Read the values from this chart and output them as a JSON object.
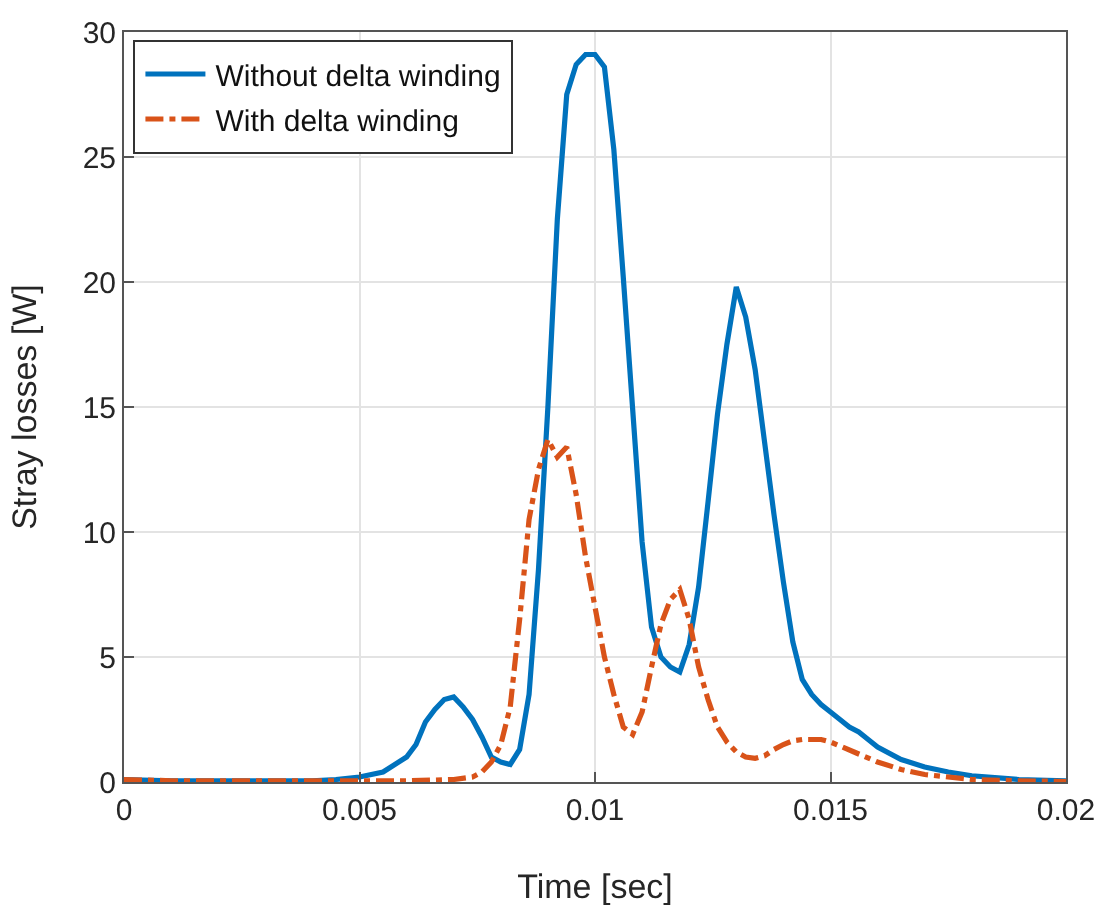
{
  "chart_data": {
    "type": "line",
    "xlabel": "Time [sec]",
    "ylabel": "Stray losses [W]",
    "xlim": [
      0,
      0.02
    ],
    "xticks": [
      0,
      0.005,
      0.01,
      0.015,
      0.02
    ],
    "ylim": [
      0,
      30
    ],
    "yticks": [
      0,
      5,
      10,
      15,
      20,
      25,
      30
    ],
    "grid": true,
    "legend": "top left",
    "series": [
      {
        "name": "Without delta winding",
        "color": "#0072bd",
        "line_style": "solid",
        "x": [
          0,
          0.001,
          0.002,
          0.003,
          0.004,
          0.0045,
          0.005,
          0.0055,
          0.006,
          0.0062,
          0.0064,
          0.0066,
          0.0068,
          0.007,
          0.0072,
          0.0074,
          0.0076,
          0.0078,
          0.008,
          0.0082,
          0.0084,
          0.0086,
          0.0088,
          0.009,
          0.0092,
          0.0094,
          0.0096,
          0.0098,
          0.01,
          0.0102,
          0.0104,
          0.0106,
          0.0108,
          0.011,
          0.0112,
          0.0114,
          0.0116,
          0.0118,
          0.012,
          0.0122,
          0.0124,
          0.0126,
          0.0128,
          0.013,
          0.0132,
          0.0134,
          0.0136,
          0.0138,
          0.014,
          0.0142,
          0.0144,
          0.0146,
          0.0148,
          0.015,
          0.0152,
          0.0154,
          0.0156,
          0.0158,
          0.016,
          0.0165,
          0.017,
          0.0175,
          0.018,
          0.019,
          0.02
        ],
        "values": [
          0.1,
          0.05,
          0.05,
          0.05,
          0.05,
          0.1,
          0.2,
          0.4,
          1.0,
          1.5,
          2.4,
          2.9,
          3.3,
          3.4,
          3.0,
          2.5,
          1.8,
          1.0,
          0.8,
          0.7,
          1.3,
          3.5,
          8.5,
          15,
          22.5,
          27.5,
          28.7,
          29.1,
          29.1,
          28.6,
          25.3,
          20.2,
          14.9,
          9.6,
          6.2,
          5.0,
          4.6,
          4.4,
          5.5,
          7.8,
          11.2,
          14.7,
          17.5,
          19.8,
          18.6,
          16.5,
          13.6,
          10.7,
          8.0,
          5.6,
          4.1,
          3.5,
          3.1,
          2.8,
          2.5,
          2.2,
          2.0,
          1.7,
          1.4,
          0.9,
          0.6,
          0.4,
          0.25,
          0.1,
          0.05
        ]
      },
      {
        "name": "With delta winding",
        "color": "#d95319",
        "line_style": "dashdot",
        "x": [
          0,
          0.001,
          0.002,
          0.003,
          0.004,
          0.005,
          0.006,
          0.007,
          0.0074,
          0.0076,
          0.0078,
          0.008,
          0.0082,
          0.0084,
          0.0086,
          0.0088,
          0.009,
          0.0092,
          0.0094,
          0.0096,
          0.0098,
          0.01,
          0.0102,
          0.0104,
          0.0106,
          0.0108,
          0.011,
          0.0112,
          0.0114,
          0.0116,
          0.0118,
          0.012,
          0.0122,
          0.0124,
          0.0126,
          0.0128,
          0.013,
          0.0132,
          0.0134,
          0.0136,
          0.0138,
          0.014,
          0.0142,
          0.0144,
          0.0146,
          0.0148,
          0.015,
          0.0155,
          0.016,
          0.0165,
          0.017,
          0.018,
          0.019,
          0.02
        ],
        "values": [
          0.1,
          0.05,
          0.05,
          0.05,
          0.05,
          0.05,
          0.05,
          0.1,
          0.2,
          0.4,
          0.8,
          1.5,
          3.0,
          6.5,
          10.5,
          12.5,
          13.7,
          13.0,
          13.4,
          11.5,
          9.0,
          7.0,
          5.0,
          3.5,
          2.2,
          1.9,
          2.8,
          4.6,
          6.3,
          7.3,
          7.7,
          6.5,
          4.6,
          3.3,
          2.2,
          1.6,
          1.2,
          1.0,
          0.95,
          1.05,
          1.3,
          1.5,
          1.65,
          1.7,
          1.7,
          1.7,
          1.6,
          1.2,
          0.8,
          0.5,
          0.3,
          0.1,
          0.05,
          0.02
        ]
      }
    ]
  }
}
